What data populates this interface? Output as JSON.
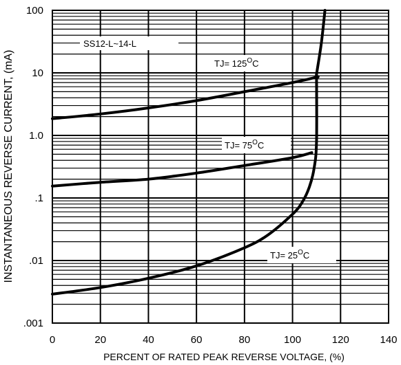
{
  "chart_data": {
    "type": "line",
    "title": "",
    "xlabel": "PERCENT OF RATED PEAK REVERSE VOLTAGE, (%)",
    "ylabel": "INSTANTANEOUS REVERSE CURRENT, (mA)",
    "xlim": [
      0,
      140
    ],
    "ylim": [
      0.001,
      100
    ],
    "yscale": "log",
    "grid": true,
    "x_ticks": [
      0,
      20,
      40,
      60,
      80,
      100,
      120,
      140
    ],
    "x_tick_labels": [
      "0",
      "20",
      "40",
      "60",
      "80",
      "100",
      "120",
      "140"
    ],
    "y_ticks": [
      0.001,
      0.01,
      0.1,
      1,
      10,
      100
    ],
    "y_tick_labels": [
      ".001",
      ".01",
      ".1",
      "1.0",
      "10",
      "100"
    ],
    "legend": "SS12-L~14-L",
    "series": [
      {
        "name": "TJ= 125°C",
        "label_main": "TJ= 125",
        "label_sup": "O",
        "label_unit": "C",
        "points": [
          [
            0,
            1.85
          ],
          [
            20,
            2.2
          ],
          [
            40,
            2.75
          ],
          [
            60,
            3.6
          ],
          [
            80,
            5.0
          ],
          [
            100,
            7.0
          ],
          [
            110,
            8.6
          ],
          [
            110,
            9.5
          ],
          [
            112,
            30
          ],
          [
            113.5,
            100
          ]
        ]
      },
      {
        "name": "TJ= 75°C",
        "label_main": "TJ= 75",
        "label_sup": "O",
        "label_unit": "C",
        "points": [
          [
            0,
            0.155
          ],
          [
            20,
            0.178
          ],
          [
            40,
            0.2
          ],
          [
            60,
            0.25
          ],
          [
            80,
            0.33
          ],
          [
            100,
            0.44
          ],
          [
            108,
            0.53
          ]
        ]
      },
      {
        "name": "TJ= 25°C",
        "label_main": "TJ= 25",
        "label_sup": "O",
        "label_unit": "C",
        "points": [
          [
            0,
            0.0029
          ],
          [
            20,
            0.0037
          ],
          [
            40,
            0.0052
          ],
          [
            60,
            0.0082
          ],
          [
            80,
            0.016
          ],
          [
            90,
            0.026
          ],
          [
            100,
            0.055
          ],
          [
            104,
            0.085
          ],
          [
            107,
            0.15
          ],
          [
            109,
            0.3
          ],
          [
            110,
            0.8
          ],
          [
            110,
            9.5
          ]
        ]
      }
    ]
  }
}
